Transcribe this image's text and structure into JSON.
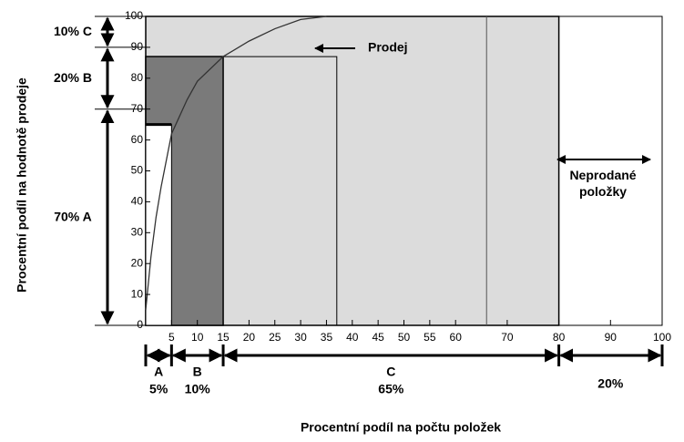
{
  "chart_data": {
    "type": "abc",
    "x_label": "Procentní podíl na počtu položek",
    "y_label": "Procentní podíl na hodnotě prodeje",
    "xlim": [
      0,
      100
    ],
    "ylim": [
      0,
      100
    ],
    "xticks": [
      5,
      10,
      15,
      20,
      25,
      30,
      35,
      40,
      45,
      50,
      55,
      60,
      70,
      80,
      90,
      100
    ],
    "yticks": [
      0,
      10,
      20,
      30,
      40,
      50,
      60,
      70,
      80,
      90,
      100
    ],
    "areas": [
      {
        "x": 80,
        "y": 100,
        "color": "#dcdcdc"
      },
      {
        "x": 15,
        "y": 87,
        "color": "#7a7a7a"
      },
      {
        "x": 5,
        "y": 65,
        "color": "#ffffff"
      }
    ],
    "box_outline": {
      "x": [
        15,
        37
      ],
      "y": 87
    },
    "divider_x": 66,
    "series": [
      {
        "name": "Prodej",
        "color": "#333333",
        "x": [
          0,
          1,
          2,
          3,
          5,
          8,
          10,
          15,
          20,
          25,
          30,
          35
        ],
        "values": [
          5,
          22,
          35,
          45,
          62,
          73,
          79,
          87,
          92,
          96,
          99,
          100
        ]
      }
    ],
    "x_segments": {
      "names": [
        "A",
        "B",
        "C",
        null
      ],
      "values": [
        5,
        10,
        65,
        20
      ],
      "value_labels": [
        "5%",
        "10%",
        "65%",
        "20%"
      ]
    },
    "y_segments": {
      "names": [
        "A",
        "B",
        "C"
      ],
      "values": [
        70,
        20,
        10
      ],
      "value_labels": [
        "70%",
        "20%",
        "10%"
      ]
    },
    "unsold_label": "Neprodané položky"
  }
}
